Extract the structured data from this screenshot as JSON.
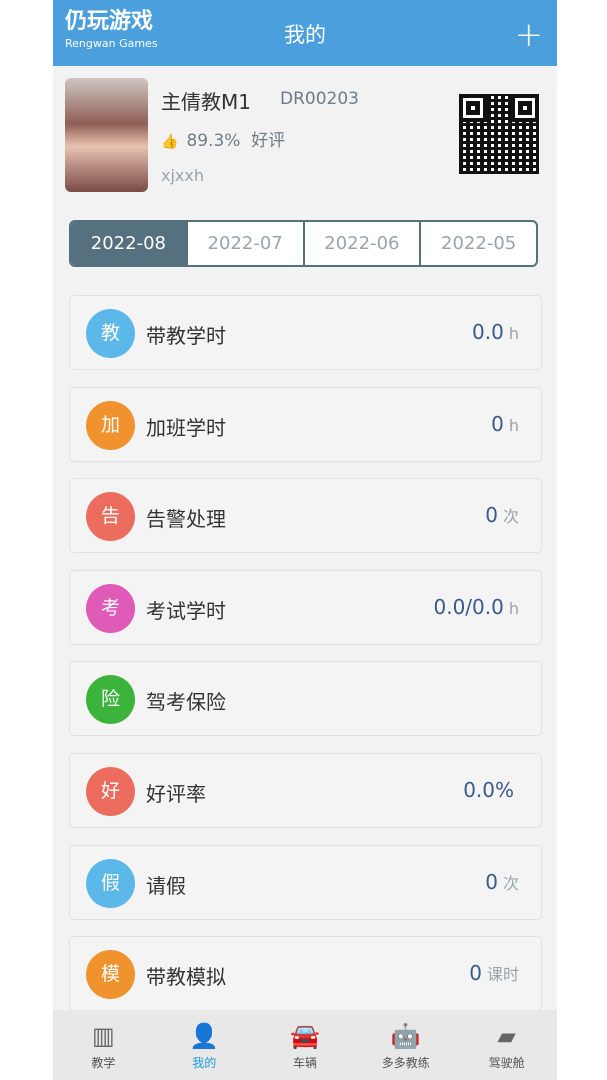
{
  "header": {
    "title": "我的",
    "add_icon": "plus-icon"
  },
  "profile": {
    "name": "主倩教M1",
    "code": "DR00203",
    "rating": "89.3%",
    "rating_label": "好评",
    "username": "xjxxh"
  },
  "months": [
    {
      "label": "2022-08",
      "active": true
    },
    {
      "label": "2022-07"
    },
    {
      "label": "2022-06"
    },
    {
      "label": "2022-05"
    }
  ],
  "items": [
    {
      "icon": "教",
      "color": "#5bb8e8",
      "label": "带教学时",
      "value": "0.0",
      "unit": "h"
    },
    {
      "icon": "加",
      "color": "#f0922e",
      "label": "加班学时",
      "value": "0",
      "unit": "h"
    },
    {
      "icon": "告",
      "color": "#ec6c5e",
      "label": "告警处理",
      "value": "0",
      "unit": "次"
    },
    {
      "icon": "考",
      "color": "#e05ab8",
      "label": "考试学时",
      "value": "0.0/0.0",
      "unit": "h"
    },
    {
      "icon": "险",
      "color": "#3cb43c",
      "label": "驾考保险",
      "value": "",
      "unit": ""
    },
    {
      "icon": "好",
      "color": "#ec6c5e",
      "label": "好评率",
      "value": "0.0%",
      "unit": ""
    },
    {
      "icon": "假",
      "color": "#5bb8e8",
      "label": "请假",
      "value": "0",
      "unit": "次"
    },
    {
      "icon": "模",
      "color": "#f0922e",
      "label": "带教模拟",
      "value": "0",
      "unit": "课时"
    }
  ],
  "tabs": [
    {
      "label": "教学",
      "icon": "book-icon"
    },
    {
      "label": "我的",
      "icon": "person-icon",
      "active": true
    },
    {
      "label": "车辆",
      "icon": "car-icon"
    },
    {
      "label": "多多教练",
      "icon": "robot-icon"
    },
    {
      "label": "驾驶舱",
      "icon": "cockpit-icon"
    }
  ],
  "watermark": {
    "text": "仍玩游戏",
    "sub": "Rengwan Games"
  }
}
